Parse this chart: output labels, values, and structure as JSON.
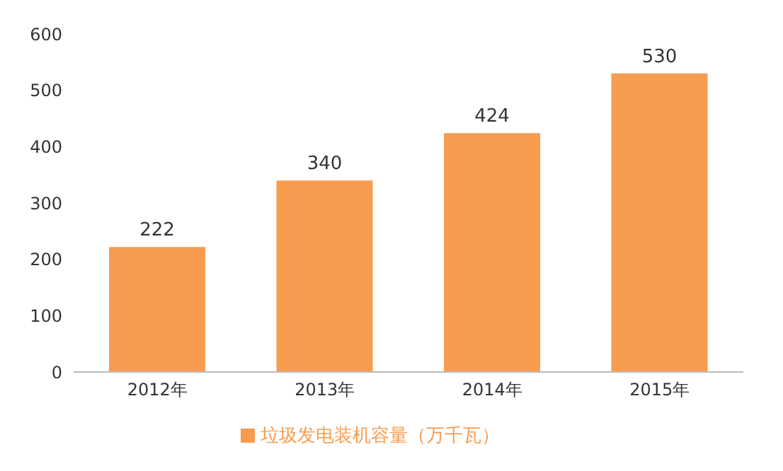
{
  "chart_data": {
    "type": "bar",
    "categories": [
      "2012年",
      "2013年",
      "2014年",
      "2015年"
    ],
    "series": [
      {
        "name": "垃圾发电装机容量（万千瓦）",
        "color": "#f79c4f",
        "values": [
          222,
          340,
          424,
          530
        ]
      }
    ],
    "ylim": [
      0,
      600
    ],
    "yticks": [
      0,
      100,
      200,
      300,
      400,
      500,
      600
    ],
    "grid": false,
    "legend": "bottom",
    "data_labels": true
  }
}
